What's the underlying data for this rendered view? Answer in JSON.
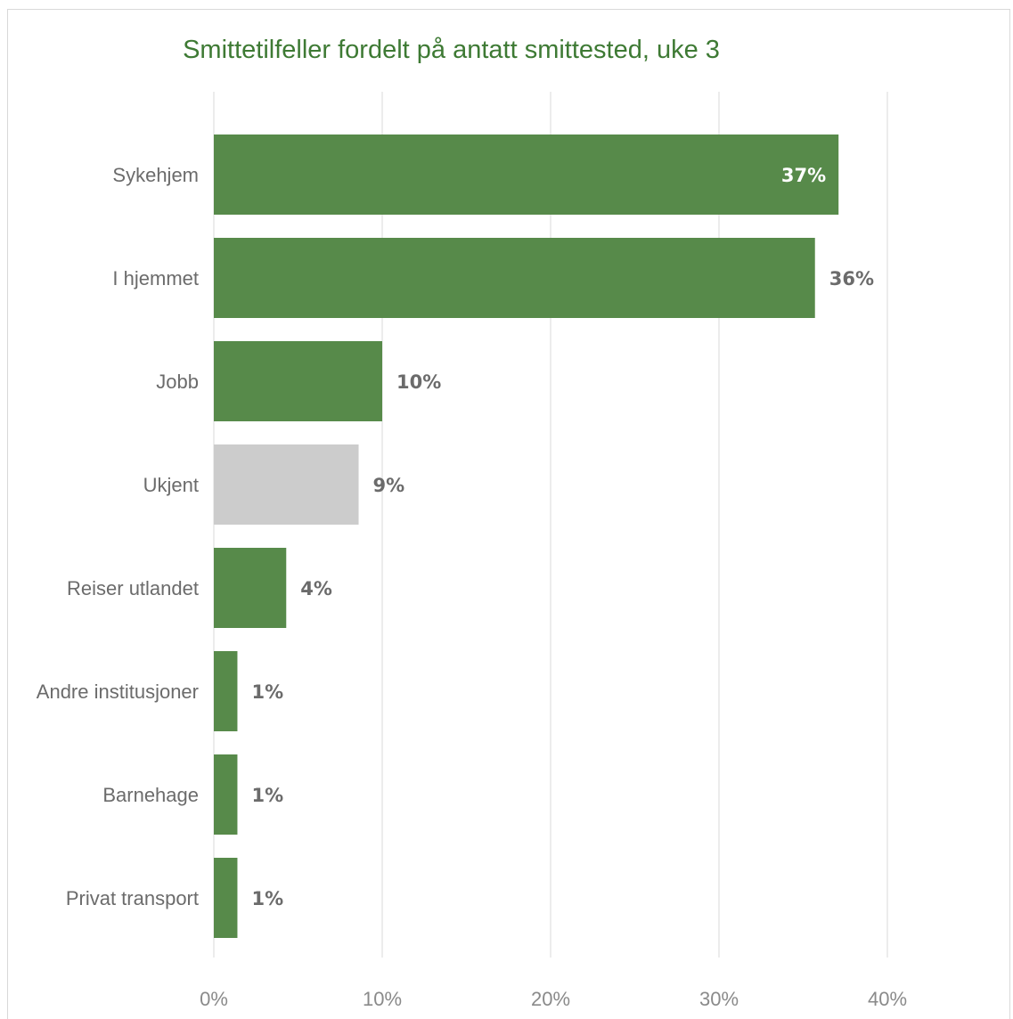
{
  "chart_data": {
    "type": "bar",
    "orientation": "horizontal",
    "title": "Smittetilfeller fordelt på antatt smittested, uke 3",
    "categories": [
      "Sykehjem",
      "I hjemmet",
      "Jobb",
      "Ukjent",
      "Reiser utlandet",
      "Andre institusjoner",
      "Barnehage",
      "Privat transport"
    ],
    "values": [
      37.1,
      35.7,
      10.0,
      8.6,
      4.3,
      1.4,
      1.4,
      1.4
    ],
    "data_labels": [
      "37%",
      "36%",
      "10%",
      "9%",
      "4%",
      "1%",
      "1%",
      "1%"
    ],
    "xlim": [
      0,
      40
    ],
    "xticks": [
      0,
      10,
      20,
      30,
      40
    ],
    "xtick_labels": [
      "0%",
      "10%",
      "20%",
      "30%",
      "40%"
    ],
    "grid": true,
    "legend": "none",
    "colors": {
      "bar": "#578a4a",
      "highlight": "#cccccc",
      "title": "#3e7a34",
      "grid": "#e6e6e6"
    },
    "highlight_category": "Ukjent",
    "inside_label_category": "Sykehjem"
  }
}
